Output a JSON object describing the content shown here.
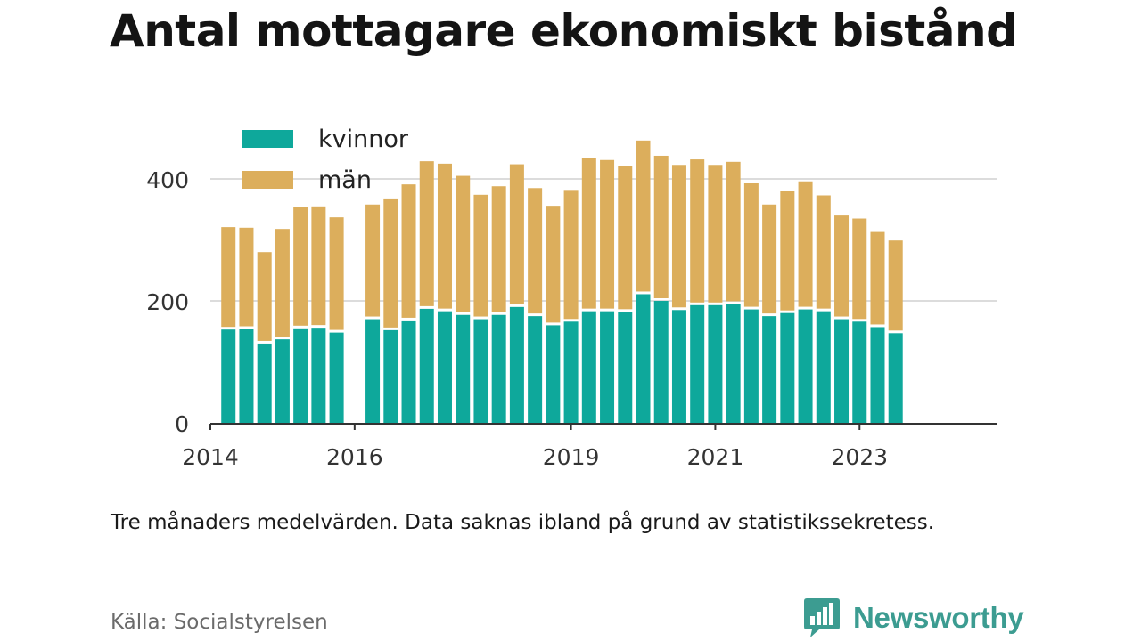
{
  "header": {
    "title": "Antal mottagare ekonomiskt bistånd"
  },
  "footer": {
    "note": "Tre månaders medelvärden. Data saknas ibland på grund av statistikssekretess.",
    "source": "Källa: Socialstyrelsen",
    "brand": "Newsworthy"
  },
  "colors": {
    "kvinnor": "#0ea89b",
    "man": "#dcae5c",
    "grid": "#dcdcdc",
    "axis": "#333333",
    "brand": "#3c9c91"
  },
  "chart_data": {
    "type": "bar",
    "stacked": true,
    "title": "Antal mottagare ekonomiskt bistånd",
    "xlabel": "",
    "ylabel": "",
    "ylim": [
      0,
      470
    ],
    "y_ticks": [
      0,
      200,
      400
    ],
    "x_tick_labels": [
      "2014",
      "2016",
      "2019",
      "2021",
      "2023"
    ],
    "x_range": [
      2014.0,
      2024.9
    ],
    "legend": {
      "placement": "top-left",
      "entries": [
        "kvinnor",
        "män"
      ]
    },
    "grid": true,
    "x": [
      2014.25,
      2014.5,
      2014.75,
      2015.0,
      2015.25,
      2015.5,
      2015.75,
      2016.25,
      2016.5,
      2016.75,
      2017.0,
      2017.25,
      2017.5,
      2017.75,
      2018.0,
      2018.25,
      2018.5,
      2018.75,
      2019.0,
      2019.25,
      2019.5,
      2019.75,
      2020.0,
      2020.25,
      2020.5,
      2020.75,
      2021.0,
      2021.25,
      2021.5,
      2021.75,
      2022.0,
      2022.25,
      2022.5,
      2022.75,
      2023.0,
      2023.25,
      2023.5
    ],
    "series": [
      {
        "name": "kvinnor",
        "values": [
          153,
          154,
          130,
          137,
          155,
          156,
          148,
          170,
          152,
          168,
          187,
          183,
          177,
          170,
          177,
          190,
          175,
          160,
          166,
          183,
          183,
          182,
          211,
          200,
          185,
          193,
          193,
          195,
          186,
          175,
          180,
          186,
          183,
          170,
          166,
          157,
          147
        ]
      },
      {
        "name": "män",
        "values": [
          168,
          166,
          150,
          181,
          199,
          199,
          189,
          188,
          216,
          223,
          242,
          242,
          228,
          204,
          211,
          234,
          210,
          196,
          216,
          252,
          248,
          239,
          252,
          238,
          238,
          239,
          230,
          233,
          207,
          183,
          201,
          210,
          190,
          170,
          169,
          156,
          152
        ]
      }
    ]
  }
}
